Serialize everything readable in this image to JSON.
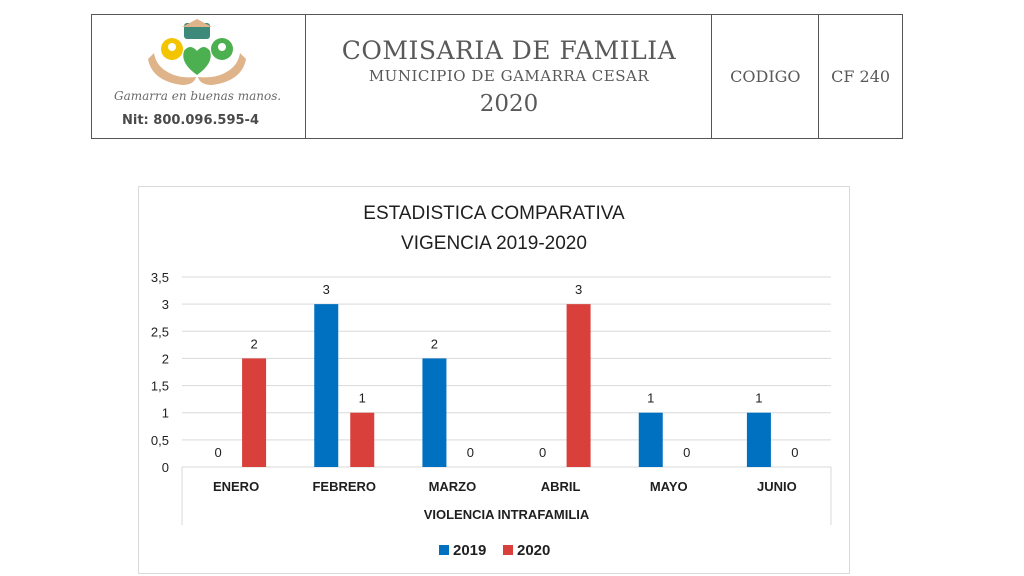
{
  "header": {
    "org_title": "COMISARIA DE FAMILIA",
    "municipality": "MUNICIPIO DE GAMARRA CESAR",
    "year": "2020",
    "code_label": "CODIGO",
    "code_value": "CF 240",
    "logo": {
      "slogan": "Gamarra en buenas manos.",
      "nit": "Nit: 800.096.595-4",
      "colors": {
        "green": "#4caf50",
        "yellow": "#f2c500",
        "tan": "#e0b48a",
        "teal": "#3d8a7a"
      }
    }
  },
  "chart_data": {
    "type": "bar",
    "title": "ESTADISTICA COMPARATIVA",
    "subtitle": "VIGENCIA 2019-2020",
    "xlabel": "VIOLENCIA INTRAFAMILIA",
    "ylabel": "",
    "categories": [
      "ENERO",
      "FEBRERO",
      "MARZO",
      "ABRIL",
      "MAYO",
      "JUNIO"
    ],
    "series": [
      {
        "name": "2019",
        "color": "#0070c0",
        "values": [
          0,
          3,
          2,
          0,
          1,
          1
        ]
      },
      {
        "name": "2020",
        "color": "#d9403b",
        "values": [
          2,
          1,
          0,
          3,
          0,
          0
        ]
      }
    ],
    "ylim": [
      0,
      3.5
    ],
    "yticks": [
      "0",
      "0,5",
      "1",
      "1,5",
      "2",
      "2,5",
      "3",
      "3,5"
    ],
    "grid": true,
    "legend": "bottom"
  }
}
